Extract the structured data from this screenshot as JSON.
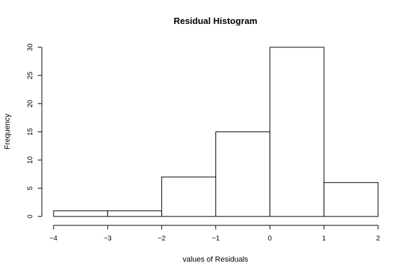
{
  "chart_data": {
    "type": "bar",
    "title": "Residual Histogram",
    "xlabel": "values of Residuals",
    "ylabel": "Frequency",
    "bins": [
      {
        "from": -4,
        "to": -3,
        "count": 1
      },
      {
        "from": -3,
        "to": -2,
        "count": 1
      },
      {
        "from": -2,
        "to": -1,
        "count": 7
      },
      {
        "from": -1,
        "to": 0,
        "count": 15
      },
      {
        "from": 0,
        "to": 1,
        "count": 30
      },
      {
        "from": 1,
        "to": 2,
        "count": 6
      }
    ],
    "xlim": [
      -4,
      2
    ],
    "ylim": [
      0,
      30
    ],
    "xticks": [
      -4,
      -3,
      -2,
      -1,
      0,
      1,
      2
    ],
    "xtick_labels": [
      "−4",
      "−3",
      "−2",
      "−1",
      "0",
      "1",
      "2"
    ],
    "yticks": [
      0,
      5,
      10,
      15,
      20,
      25,
      30
    ],
    "ytick_labels": [
      "0",
      "5",
      "10",
      "15",
      "20",
      "25",
      "30"
    ],
    "grid": false,
    "legend": "none",
    "colors": {
      "bar_fill": "#ffffff",
      "bar_stroke": "#000000"
    }
  }
}
